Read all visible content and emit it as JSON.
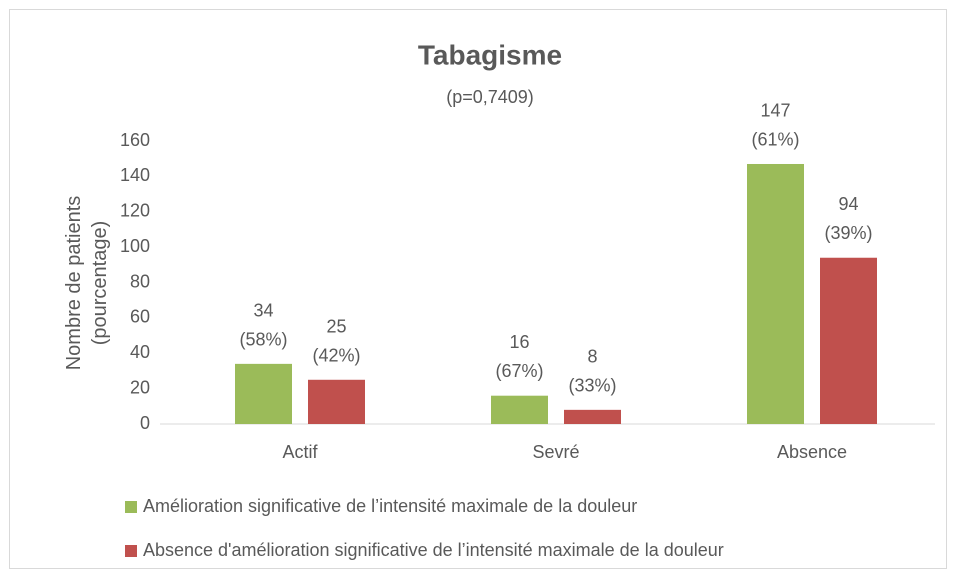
{
  "chart_data": {
    "type": "bar",
    "title": "Tabagisme",
    "subtitle": "(p=0,7409)",
    "y_label": "Nombre de patients\n(pourcentage)",
    "categories": [
      "Actif",
      "Sevré",
      "Absence"
    ],
    "series": [
      {
        "name": "Amélioration significative de l’intensité maximale de la douleur",
        "color": "#9bbb59",
        "values": [
          34,
          16,
          147
        ],
        "value_labels": [
          "34\n(58%)",
          "16\n(67%)",
          "147\n(61%)"
        ]
      },
      {
        "name": "Absence d'amélioration significative de l’intensité maximale de la douleur",
        "color": "#c0504d",
        "values": [
          25,
          8,
          94
        ],
        "value_labels": [
          "25\n(42%)",
          "8\n(33%)",
          "94\n(39%)"
        ]
      }
    ],
    "ylim": [
      0,
      160
    ],
    "yticks": [
      0,
      20,
      40,
      60,
      80,
      100,
      120,
      140,
      160
    ],
    "grid": false
  }
}
